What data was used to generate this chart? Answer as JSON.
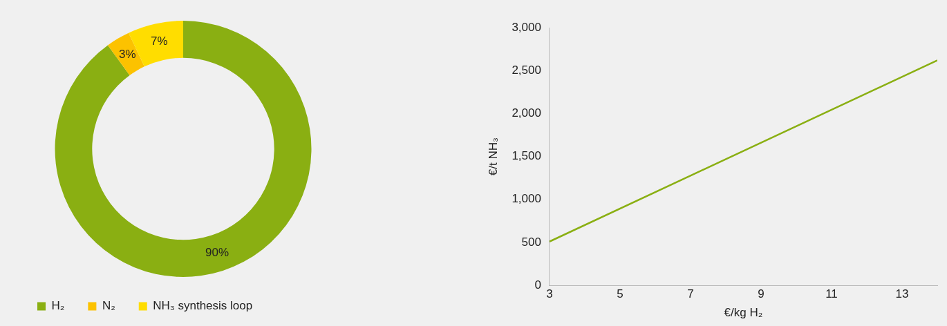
{
  "chart_data": [
    {
      "type": "donut",
      "categories": [
        "H₂",
        "N₂",
        "NH₃ synthesis loop"
      ],
      "values": [
        90,
        3,
        7
      ],
      "colors": [
        "#8aaf12",
        "#fcc200",
        "#ffdd00"
      ],
      "value_labels": [
        "90%",
        "3%",
        "7%"
      ],
      "legend": "bottom left"
    },
    {
      "type": "line",
      "xlabel": "€/kg H₂",
      "ylabel": "€/t NH₃",
      "x": [
        3,
        14
      ],
      "series": [
        {
          "color": "#8aaf12",
          "values": [
            510,
            2620
          ]
        }
      ],
      "xlim": [
        3,
        14
      ],
      "xticks": [
        3,
        5,
        7,
        9,
        11,
        13
      ],
      "ylim": [
        0,
        3000
      ],
      "yticks": [
        {
          "value": 0,
          "label": "0"
        },
        {
          "value": 500,
          "label": "500"
        },
        {
          "value": 1000,
          "label": "1,000"
        },
        {
          "value": 1500,
          "label": "1,500"
        },
        {
          "value": 2000,
          "label": "2,000"
        },
        {
          "value": 2500,
          "label": "2,500"
        },
        {
          "value": 3000,
          "label": "3,000"
        }
      ],
      "grid": false,
      "marker": "none",
      "line_style": "solid"
    }
  ]
}
